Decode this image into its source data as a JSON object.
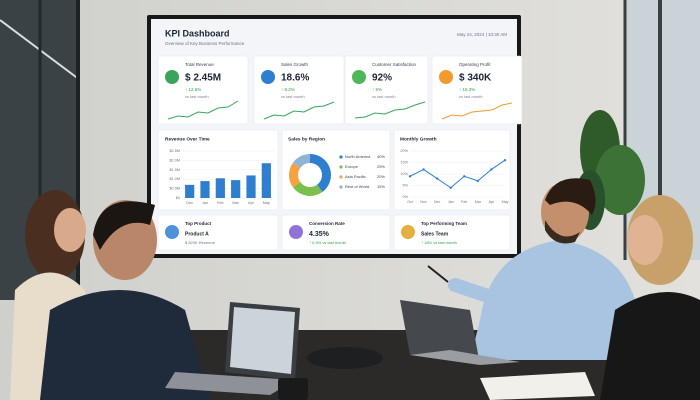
{
  "screen": {
    "title": "KPI Dashboard",
    "subtitle": "Overview of Key Business Performance",
    "date": "May 24, 2024 | 10:30 AM",
    "kpis": [
      {
        "label": "Total Revenue",
        "value": "$ 2.45M",
        "change": "↑ 12.6%",
        "note": "vs last month"
      },
      {
        "label": "Sales Growth",
        "value": "18.6%",
        "change": "↑ 8.2%",
        "note": "vs last month"
      },
      {
        "label": "Customer Satisfaction",
        "value": "92%",
        "change": "↑ 5%",
        "note": "vs last month"
      },
      {
        "label": "Operating Profit",
        "value": "$ 340K",
        "change": "↑ 15.3%",
        "note": "vs last month"
      }
    ],
    "revenue_chart": {
      "title": "Revenue Over Time",
      "categories": [
        "Dec",
        "Jan",
        "Feb",
        "Mar",
        "Apr",
        "May"
      ],
      "values": [
        0.7,
        0.9,
        1.05,
        0.95,
        1.2,
        1.85
      ],
      "color": "#2f7fd0",
      "ylim": [
        0,
        2.5
      ],
      "yticks": [
        {
          "value": 0,
          "label": "$0"
        },
        {
          "value": 0.5,
          "label": "$0.5M"
        },
        {
          "value": 1,
          "label": "$1.0M"
        },
        {
          "value": 1.5,
          "label": "$1.5M"
        },
        {
          "value": 2,
          "label": "$2.0M"
        },
        {
          "value": 2.5,
          "label": "$2.5M"
        }
      ]
    },
    "region_chart": {
      "title": "Sales by Region",
      "series": [
        {
          "name": "North America",
          "color": "#2f7fd0",
          "values": [
            40
          ],
          "value_labels": [
            "40%"
          ]
        },
        {
          "name": "Europe",
          "color": "#7cc04b",
          "values": [
            25
          ],
          "value_labels": [
            "25%"
          ]
        },
        {
          "name": "Asia Pacific",
          "color": "#f4a340",
          "values": [
            20
          ],
          "value_labels": [
            "20%"
          ]
        },
        {
          "name": "Rest of World",
          "color": "#8fb4d6",
          "values": [
            15
          ],
          "value_labels": [
            "15%"
          ]
        }
      ]
    },
    "growth_chart": {
      "title": "Monthly Growth",
      "categories": [
        "Oct",
        "Nov",
        "Dec",
        "Jan",
        "Feb",
        "Mar",
        "Apr",
        "May"
      ],
      "values": [
        9,
        12,
        8,
        4,
        9,
        7,
        12,
        16
      ],
      "color": "#2f7fd0",
      "ylim": [
        0,
        20
      ],
      "yticks": [
        {
          "value": 0,
          "label": "0%"
        },
        {
          "value": 5,
          "label": "5%"
        },
        {
          "value": 10,
          "label": "10%"
        },
        {
          "value": 15,
          "label": "15%"
        },
        {
          "value": 20,
          "label": "20%"
        }
      ]
    },
    "highlights": [
      {
        "label": "Top Product",
        "value": "Product A",
        "note": "$ 820K Revenue"
      },
      {
        "label": "Conversion Rate",
        "value": "4.35%",
        "note": "↑ 0.4% vs last month"
      },
      {
        "label": "Top Performing Team",
        "value": "Sales Team",
        "note": "↑ 18% vs last month"
      }
    ]
  }
}
